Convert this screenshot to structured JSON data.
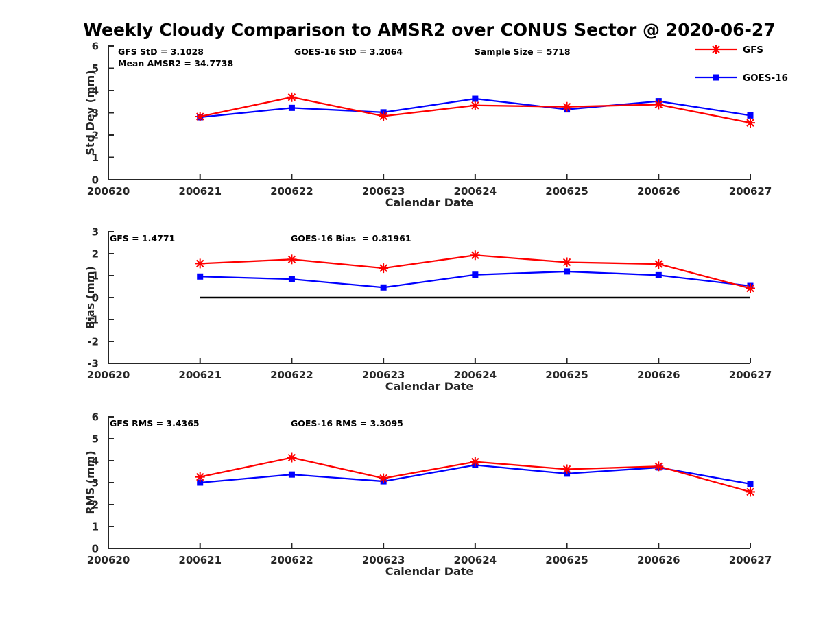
{
  "title": "Weekly Cloudy Comparison to AMSR2 over CONUS Sector @ 2020-06-27",
  "colors": {
    "gfs": "#ff0000",
    "goes": "#0000ff",
    "axis": "#262626",
    "zero_line": "#000000"
  },
  "legend": {
    "position": "top-right",
    "items": [
      {
        "label": "GFS",
        "color_key": "gfs",
        "marker": "asterisk"
      },
      {
        "label": "GOES-16",
        "color_key": "goes",
        "marker": "square"
      }
    ]
  },
  "chart_data": [
    {
      "type": "line",
      "name": "std-dev-panel",
      "ylabel": "Std Dev (mm)",
      "xlabel": "Calendar Date",
      "ylim": [
        0,
        6
      ],
      "yticks": [
        0,
        1,
        2,
        3,
        4,
        5,
        6
      ],
      "xtick_labels": [
        "200620",
        "200621",
        "200622",
        "200623",
        "200624",
        "200625",
        "200626",
        "200627"
      ],
      "x": [
        "200621",
        "200622",
        "200623",
        "200624",
        "200625",
        "200626",
        "200627"
      ],
      "series": [
        {
          "name": "GFS",
          "color_key": "gfs",
          "marker": "asterisk",
          "values": [
            2.83,
            3.7,
            2.85,
            3.33,
            3.27,
            3.37,
            2.55
          ]
        },
        {
          "name": "GOES-16",
          "color_key": "goes",
          "marker": "square",
          "values": [
            2.8,
            3.22,
            3.02,
            3.63,
            3.15,
            3.52,
            2.88
          ]
        }
      ],
      "annotations": [
        {
          "text": "GFS StD = 3.1028"
        },
        {
          "text": "Mean AMSR2 = 34.7738"
        },
        {
          "text": "GOES-16 StD = 3.2064"
        },
        {
          "text": "Sample Size = 5718"
        }
      ]
    },
    {
      "type": "line",
      "name": "bias-panel",
      "ylabel": "Bias (mm)",
      "xlabel": "Calendar Date",
      "ylim": [
        -3,
        3
      ],
      "yticks": [
        -3,
        -2,
        -1,
        0,
        1,
        2,
        3
      ],
      "xtick_labels": [
        "200620",
        "200621",
        "200622",
        "200623",
        "200624",
        "200625",
        "200626",
        "200627"
      ],
      "x": [
        "200621",
        "200622",
        "200623",
        "200624",
        "200625",
        "200626",
        "200627"
      ],
      "zero_line": {
        "value": 0,
        "from": "200621",
        "to": "200627"
      },
      "series": [
        {
          "name": "GFS",
          "color_key": "gfs",
          "marker": "asterisk",
          "values": [
            1.55,
            1.74,
            1.34,
            1.93,
            1.61,
            1.53,
            0.42
          ]
        },
        {
          "name": "GOES-16",
          "color_key": "goes",
          "marker": "square",
          "values": [
            0.96,
            0.84,
            0.46,
            1.04,
            1.19,
            1.02,
            0.53
          ]
        }
      ],
      "annotations": [
        {
          "text": "GFS = 1.4771"
        },
        {
          "text": "GOES-16 Bias  = 0.81961"
        }
      ]
    },
    {
      "type": "line",
      "name": "rms-panel",
      "ylabel": "RMS (mm)",
      "xlabel": "Calendar Date",
      "ylim": [
        0,
        6
      ],
      "yticks": [
        0,
        1,
        2,
        3,
        4,
        5,
        6
      ],
      "xtick_labels": [
        "200620",
        "200621",
        "200622",
        "200623",
        "200624",
        "200625",
        "200626",
        "200627"
      ],
      "x": [
        "200621",
        "200622",
        "200623",
        "200624",
        "200625",
        "200626",
        "200627"
      ],
      "series": [
        {
          "name": "GFS",
          "color_key": "gfs",
          "marker": "asterisk",
          "values": [
            3.26,
            4.14,
            3.2,
            3.95,
            3.61,
            3.74,
            2.58
          ]
        },
        {
          "name": "GOES-16",
          "color_key": "goes",
          "marker": "square",
          "values": [
            3.0,
            3.37,
            3.06,
            3.8,
            3.41,
            3.69,
            2.94
          ]
        }
      ],
      "annotations": [
        {
          "text": "GFS RMS = 3.4365"
        },
        {
          "text": "GOES-16 RMS = 3.3095"
        }
      ]
    }
  ]
}
